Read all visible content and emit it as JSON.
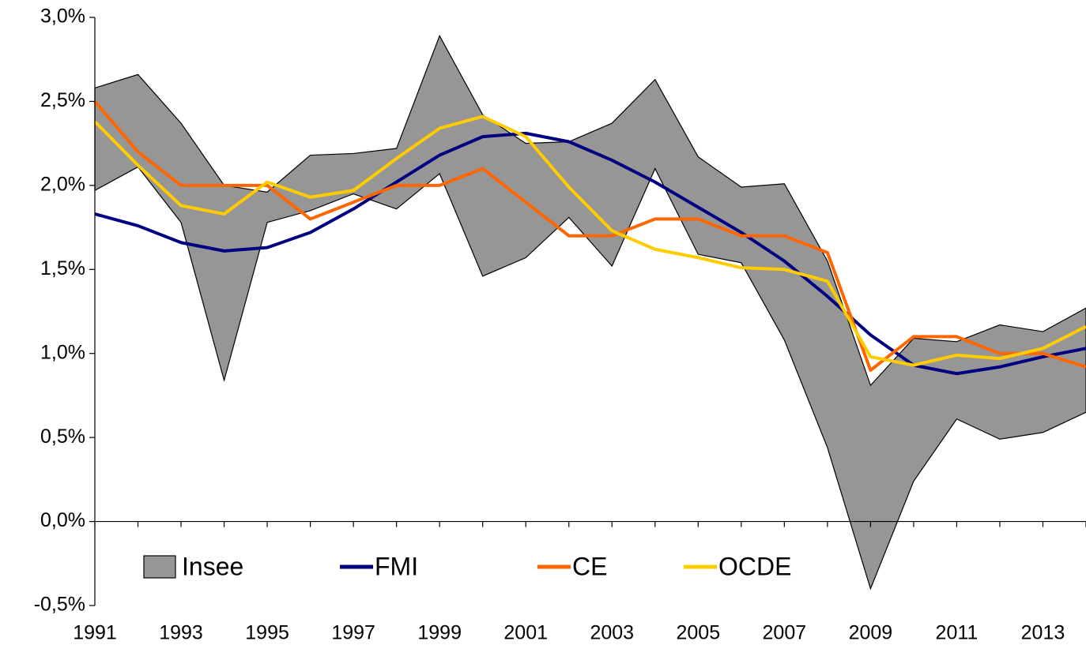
{
  "chart_data": {
    "type": "line",
    "x": [
      1991,
      1992,
      1993,
      1994,
      1995,
      1996,
      1997,
      1998,
      1999,
      2000,
      2001,
      2002,
      2003,
      2004,
      2005,
      2006,
      2007,
      2008,
      2009,
      2010,
      2011,
      2012,
      2013,
      2014
    ],
    "series": [
      {
        "name": "Insee",
        "color": "#969696",
        "band": true,
        "values": [
          2.58,
          2.66,
          2.37,
          2.0,
          1.96,
          2.18,
          2.19,
          2.22,
          2.89,
          2.42,
          2.25,
          2.26,
          2.37,
          2.63,
          2.17,
          1.99,
          2.01,
          1.55,
          0.81,
          1.09,
          1.07,
          1.17,
          1.13,
          1.27
        ],
        "lower": [
          1.97,
          2.11,
          1.78,
          0.84,
          1.78,
          1.85,
          1.95,
          1.86,
          2.07,
          1.46,
          1.57,
          1.81,
          1.52,
          2.1,
          1.59,
          1.54,
          1.08,
          0.44,
          -0.4,
          0.24,
          0.61,
          0.49,
          0.53,
          0.65
        ]
      },
      {
        "name": "FMI",
        "color": "#000080",
        "values": [
          1.83,
          1.76,
          1.66,
          1.61,
          1.63,
          1.72,
          1.86,
          2.02,
          2.18,
          2.29,
          2.31,
          2.26,
          2.15,
          2.02,
          1.87,
          1.72,
          1.55,
          1.34,
          1.11,
          0.93,
          0.88,
          0.92,
          0.98,
          1.03
        ]
      },
      {
        "name": "CE",
        "color": "#ff6600",
        "values": [
          2.5,
          2.2,
          2.0,
          2.0,
          2.0,
          1.8,
          1.9,
          2.0,
          2.0,
          2.1,
          1.9,
          1.7,
          1.7,
          1.8,
          1.8,
          1.7,
          1.7,
          1.6,
          0.9,
          1.1,
          1.1,
          1.0,
          1.0,
          0.92
        ]
      },
      {
        "name": "OCDE",
        "color": "#ffcc00",
        "values": [
          2.38,
          2.12,
          1.88,
          1.83,
          2.02,
          1.93,
          1.97,
          2.16,
          2.34,
          2.41,
          2.29,
          1.99,
          1.73,
          1.62,
          1.57,
          1.51,
          1.5,
          1.43,
          0.98,
          0.93,
          0.99,
          0.97,
          1.03,
          1.16
        ]
      }
    ],
    "xlim": [
      1991,
      2014
    ],
    "xticks": [
      1991,
      1993,
      1995,
      1997,
      1999,
      2001,
      2003,
      2005,
      2007,
      2009,
      2011,
      2013
    ],
    "ylim": [
      -0.5,
      3.0
    ],
    "yticks": [
      {
        "value": -0.5,
        "label": "-0,5%"
      },
      {
        "value": 0,
        "label": "0,0%"
      },
      {
        "value": 0.5,
        "label": "0,5%"
      },
      {
        "value": 1.0,
        "label": "1,0%"
      },
      {
        "value": 1.5,
        "label": "1,5%"
      },
      {
        "value": 2.0,
        "label": "2,0%"
      },
      {
        "value": 2.5,
        "label": "2,5%"
      },
      {
        "value": 3.0,
        "label": "3,0%"
      }
    ],
    "legend": "bottom-left"
  }
}
